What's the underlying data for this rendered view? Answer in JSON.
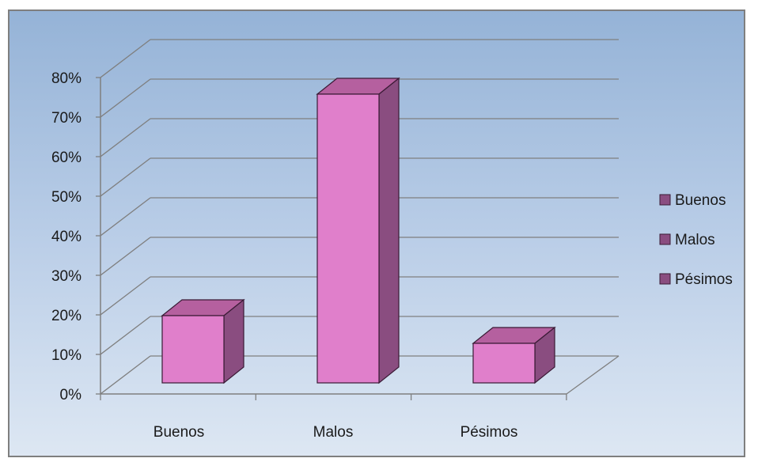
{
  "chart_data": {
    "type": "bar",
    "categories": [
      "Buenos",
      "Malos",
      "Pésimos"
    ],
    "values": [
      17,
      73,
      10
    ],
    "value_unit": "%",
    "ylim": [
      0,
      80
    ],
    "y_ticks": [
      "0%",
      "10%",
      "20%",
      "30%",
      "40%",
      "50%",
      "60%",
      "70%",
      "80%"
    ],
    "grid": true,
    "three_d": true,
    "legend": {
      "placement": "right",
      "items": [
        "Buenos",
        "Malos",
        "Pésimos"
      ]
    },
    "colors": {
      "bar_front": "#e07fcb",
      "bar_top": "#b5609f",
      "bar_side": "#8a4d80",
      "legend_swatch": "#8a4d80",
      "gridline": "#7f7f7f",
      "background_top": "#95b3d7",
      "background_bottom": "#dde7f3"
    }
  }
}
